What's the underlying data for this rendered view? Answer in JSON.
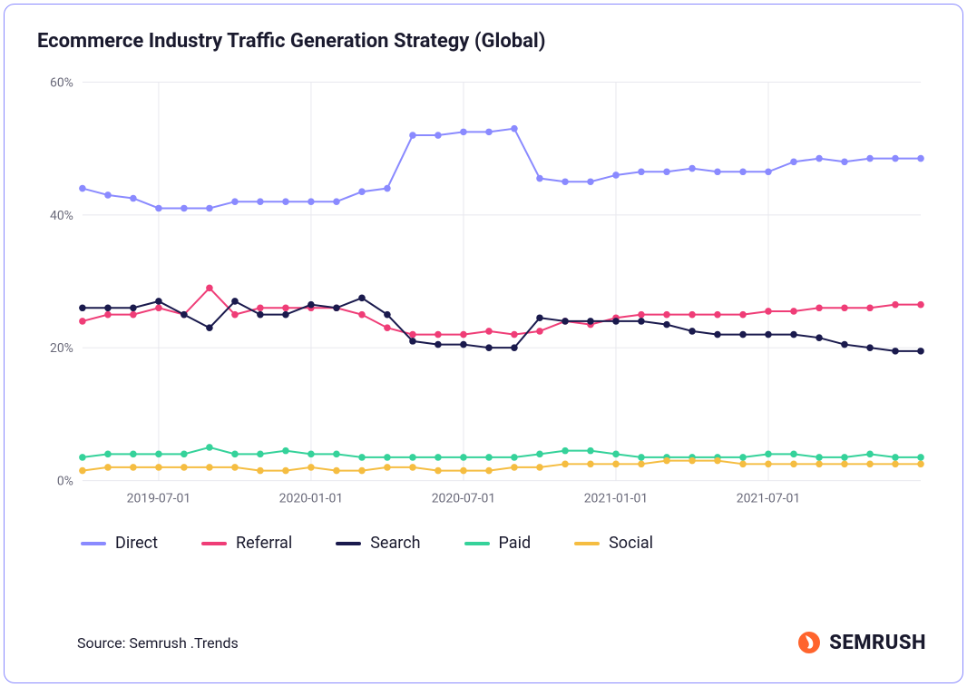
{
  "title": "Ecommerce Industry Traffic Generation Strategy (Global)",
  "source_label": "Source: Semrush .Trends",
  "brand_name": "SEMRUSH",
  "brand_icon_color": "#ff642d",
  "chart": {
    "type": "line",
    "background_color": "#ffffff",
    "grid_color": "#e8e8ee",
    "axis_text_color": "#6b6b7b",
    "axis_fontsize": 14,
    "title_fontsize": 22,
    "marker_radius": 3.8,
    "line_width": 2,
    "ylim": [
      0,
      60
    ],
    "yticks": [
      0,
      20,
      40,
      60
    ],
    "ytick_labels": [
      "0%",
      "20%",
      "40%",
      "60%"
    ],
    "n_points": 34,
    "x_grid_indices": [
      3,
      9,
      15,
      21,
      27
    ],
    "xtick_indices": [
      3,
      9,
      15,
      21,
      27
    ],
    "xtick_labels": [
      "2019-07-01",
      "2020-01-01",
      "2020-07-01",
      "2021-01-01",
      "2021-07-01"
    ],
    "series": [
      {
        "name": "Direct",
        "color": "#8a8aff",
        "values": [
          44,
          43,
          42.5,
          41,
          41,
          41,
          42,
          42,
          42,
          42,
          42,
          43.5,
          44,
          52,
          52,
          52.5,
          52.5,
          53,
          45.5,
          45,
          45,
          46,
          46.5,
          46.5,
          47,
          46.5,
          46.5,
          46.5,
          48,
          48.5,
          48,
          48.5,
          48.5,
          48.5
        ]
      },
      {
        "name": "Referral",
        "color": "#ef3d77",
        "values": [
          24,
          25,
          25,
          26,
          25,
          29,
          25,
          26,
          26,
          26,
          26,
          25,
          23,
          22,
          22,
          22,
          22.5,
          22,
          22.5,
          24,
          23.5,
          24.5,
          25,
          25,
          25,
          25,
          25,
          25.5,
          25.5,
          26,
          26,
          26,
          26.5,
          26.5
        ]
      },
      {
        "name": "Search",
        "color": "#1a1a4d",
        "values": [
          26,
          26,
          26,
          27,
          25,
          23,
          27,
          25,
          25,
          26.5,
          26,
          27.5,
          25,
          21,
          20.5,
          20.5,
          20,
          20,
          24.5,
          24,
          24,
          24,
          24,
          23.5,
          22.5,
          22,
          22,
          22,
          22,
          21.5,
          20.5,
          20,
          19.5,
          19.5
        ]
      },
      {
        "name": "Paid",
        "color": "#35d29a",
        "values": [
          3.5,
          4,
          4,
          4,
          4,
          5,
          4,
          4,
          4.5,
          4,
          4,
          3.5,
          3.5,
          3.5,
          3.5,
          3.5,
          3.5,
          3.5,
          4,
          4.5,
          4.5,
          4,
          3.5,
          3.5,
          3.5,
          3.5,
          3.5,
          4,
          4,
          3.5,
          3.5,
          4,
          3.5,
          3.5
        ]
      },
      {
        "name": "Social",
        "color": "#f5bd41",
        "values": [
          1.5,
          2,
          2,
          2,
          2,
          2,
          2,
          1.5,
          1.5,
          2,
          1.5,
          1.5,
          2,
          2,
          1.5,
          1.5,
          1.5,
          2,
          2,
          2.5,
          2.5,
          2.5,
          2.5,
          3,
          3,
          3,
          2.5,
          2.5,
          2.5,
          2.5,
          2.5,
          2.5,
          2.5,
          2.5
        ]
      }
    ]
  }
}
